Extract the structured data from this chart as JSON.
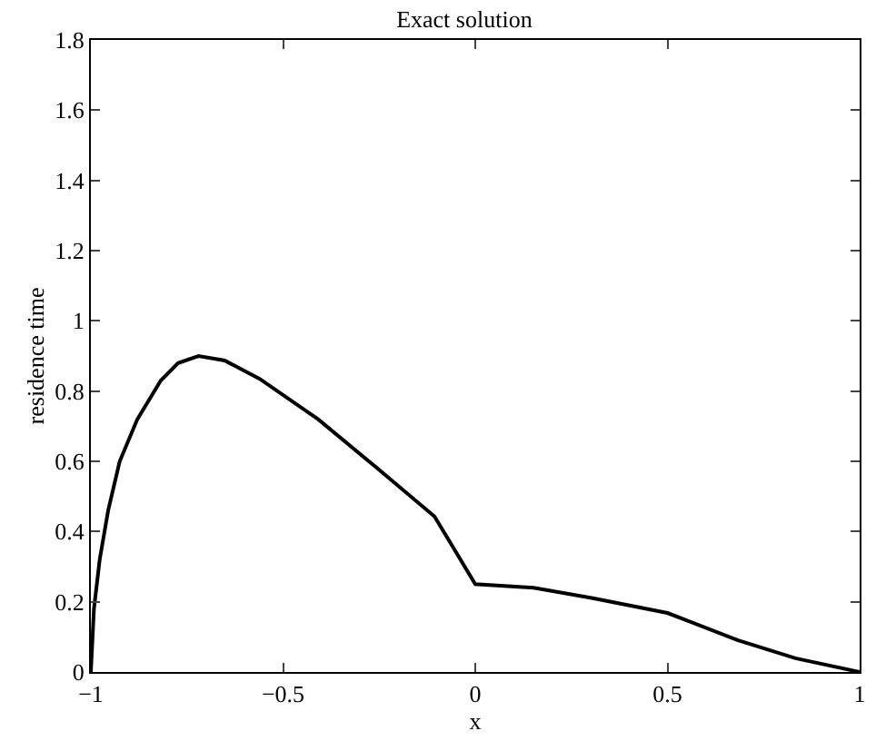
{
  "chart_data": {
    "type": "line",
    "title": "Exact solution",
    "xlabel": "x",
    "ylabel": "residence time",
    "x": [
      -1,
      -0.992,
      -0.977,
      -0.955,
      -0.925,
      -0.879,
      -0.818,
      -0.773,
      -0.72,
      -0.652,
      -0.561,
      -0.409,
      -0.258,
      -0.106,
      0,
      0.152,
      0.303,
      0.5,
      0.682,
      0.833,
      1
    ],
    "series": [
      {
        "color": "#000000",
        "values": [
          0,
          0.18,
          0.32,
          0.46,
          0.6,
          0.72,
          0.83,
          0.88,
          0.9,
          0.887,
          0.835,
          0.72,
          0.583,
          0.443,
          0.25,
          0.24,
          0.211,
          0.168,
          0.091,
          0.039,
          0
        ]
      }
    ],
    "xlim": [
      -1,
      1
    ],
    "xticks": [
      -1,
      -0.5,
      0,
      0.5,
      1
    ],
    "ylim": [
      0,
      1.8
    ],
    "yticks": [
      0,
      0.2,
      0.4,
      0.6,
      0.8,
      1,
      1.2,
      1.4,
      1.6,
      1.8
    ],
    "legend": false,
    "marker": "none",
    "line_style": "solid"
  }
}
